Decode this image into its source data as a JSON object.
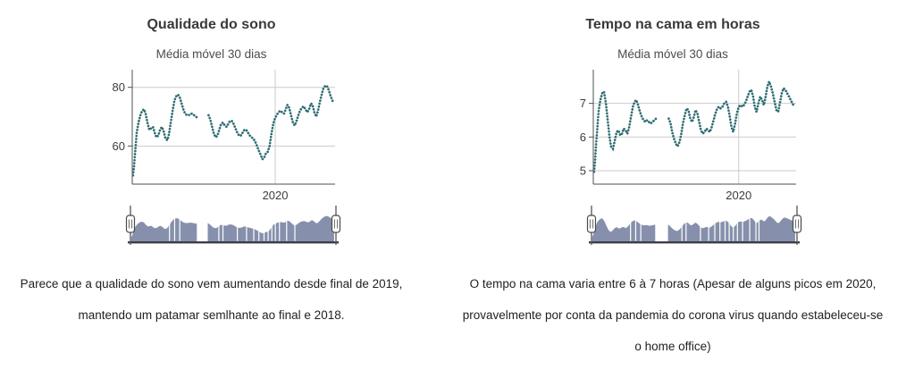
{
  "colors": {
    "series_teal": "#2e6d73",
    "brush_fill": "#8690ac",
    "brush_baseline": "#3d3d46",
    "gridline": "#cbcbcb",
    "axis": "#4f4f4f",
    "tick_text": "#3c3c3c",
    "handle_fill": "#ffffff",
    "handle_stroke": "#4a4a4a",
    "gap_line": "#ffffff"
  },
  "left_panel": {
    "title": "Qualidade do sono",
    "subtitle": "Média móvel 30 dias",
    "caption_lines": [
      "Parece que a qualidade do sono vem aumentando desde final de 2019,",
      "mantendo um patamar semlhante ao final e 2018."
    ]
  },
  "right_panel": {
    "title": "Tempo na cama em horas",
    "subtitle": "Média móvel 30 dias",
    "caption_lines": [
      "O tempo na cama varia entre 6 à 7 horas (Apesar de alguns picos em 2020,",
      "provavelmente por conta da pandemia do corona virus quando estabeleceu-se",
      "o home office)"
    ]
  },
  "chart_data": [
    {
      "type": "line",
      "style": "dotted",
      "title": "Qualidade do sono",
      "subtitle": "Média móvel 30 dias",
      "xlabel": "",
      "ylabel": "",
      "ylim": [
        47,
        86
      ],
      "yticks": [
        60,
        80
      ],
      "xticks": [
        {
          "label": "2020",
          "position": 0.705
        }
      ],
      "x_unit": "fraction of mid-2018 to mid-2020 range",
      "grid": true,
      "has_range_slider": true,
      "brush_vlim": [
        44,
        88
      ],
      "brush_gap_lines": [
        0.19,
        0.215,
        0.24,
        0.43,
        0.45,
        0.52,
        0.565,
        0.6,
        0.625,
        0.65,
        0.67,
        0.688,
        0.705,
        0.725,
        0.76,
        0.8
      ],
      "points": [
        [
          0.004,
          50.0
        ],
        [
          0.009,
          53.0
        ],
        [
          0.013,
          57.0
        ],
        [
          0.018,
          61.0
        ],
        [
          0.022,
          64.5
        ],
        [
          0.031,
          68.0
        ],
        [
          0.04,
          70.5
        ],
        [
          0.049,
          72.0
        ],
        [
          0.058,
          72.5
        ],
        [
          0.066,
          71.0
        ],
        [
          0.075,
          68.0
        ],
        [
          0.084,
          65.5
        ],
        [
          0.093,
          66.0
        ],
        [
          0.102,
          66.5
        ],
        [
          0.111,
          64.5
        ],
        [
          0.119,
          63.0
        ],
        [
          0.128,
          63.5
        ],
        [
          0.137,
          65.5
        ],
        [
          0.146,
          66.5
        ],
        [
          0.155,
          65.0
        ],
        [
          0.164,
          62.5
        ],
        [
          0.173,
          62.0
        ],
        [
          0.181,
          64.0
        ],
        [
          0.19,
          68.0
        ],
        [
          0.199,
          72.0
        ],
        [
          0.208,
          75.5
        ],
        [
          0.217,
          77.0
        ],
        [
          0.226,
          77.5
        ],
        [
          0.235,
          76.5
        ],
        [
          0.243,
          74.5
        ],
        [
          0.252,
          72.5
        ],
        [
          0.261,
          71.0
        ],
        [
          0.27,
          70.5
        ],
        [
          0.279,
          70.5
        ],
        [
          0.288,
          71.0
        ],
        [
          0.296,
          71.0
        ],
        [
          0.305,
          70.5
        ],
        [
          0.314,
          70.0
        ],
        [
          0.323,
          69.5
        ],
        null,
        [
          0.376,
          70.5
        ],
        [
          0.385,
          69.0
        ],
        [
          0.394,
          66.5
        ],
        [
          0.403,
          64.0
        ],
        [
          0.412,
          63.0
        ],
        [
          0.42,
          63.5
        ],
        [
          0.429,
          65.5
        ],
        [
          0.438,
          67.5
        ],
        [
          0.447,
          68.0
        ],
        [
          0.456,
          67.0
        ],
        [
          0.465,
          66.5
        ],
        [
          0.473,
          67.5
        ],
        [
          0.482,
          68.5
        ],
        [
          0.491,
          68.5
        ],
        [
          0.5,
          67.5
        ],
        [
          0.509,
          66.0
        ],
        [
          0.518,
          64.5
        ],
        [
          0.527,
          63.5
        ],
        [
          0.535,
          63.5
        ],
        [
          0.544,
          64.5
        ],
        [
          0.553,
          65.5
        ],
        [
          0.562,
          65.5
        ],
        [
          0.571,
          64.5
        ],
        [
          0.58,
          63.5
        ],
        [
          0.588,
          63.0
        ],
        [
          0.597,
          62.5
        ],
        [
          0.606,
          61.5
        ],
        [
          0.615,
          60.0
        ],
        [
          0.624,
          58.5
        ],
        [
          0.633,
          57.0
        ],
        [
          0.642,
          55.5
        ],
        [
          0.65,
          56.0
        ],
        [
          0.659,
          57.5
        ],
        [
          0.668,
          58.0
        ],
        [
          0.677,
          60.0
        ],
        [
          0.686,
          64.0
        ],
        [
          0.695,
          67.5
        ],
        [
          0.704,
          69.5
        ],
        [
          0.712,
          70.5
        ],
        [
          0.721,
          71.5
        ],
        [
          0.73,
          72.0
        ],
        [
          0.739,
          71.5
        ],
        [
          0.748,
          71.0
        ],
        [
          0.757,
          72.5
        ],
        [
          0.765,
          74.0
        ],
        [
          0.774,
          73.0
        ],
        [
          0.783,
          70.5
        ],
        [
          0.792,
          68.0
        ],
        [
          0.801,
          67.0
        ],
        [
          0.81,
          68.5
        ],
        [
          0.819,
          70.5
        ],
        [
          0.827,
          72.0
        ],
        [
          0.836,
          73.0
        ],
        [
          0.845,
          73.5
        ],
        [
          0.854,
          72.5
        ],
        [
          0.863,
          71.5
        ],
        [
          0.872,
          72.5
        ],
        [
          0.881,
          74.5
        ],
        [
          0.889,
          74.0
        ],
        [
          0.898,
          71.5
        ],
        [
          0.907,
          70.0
        ],
        [
          0.916,
          72.0
        ],
        [
          0.925,
          75.0
        ],
        [
          0.934,
          77.5
        ],
        [
          0.942,
          79.5
        ],
        [
          0.951,
          80.5
        ],
        [
          0.96,
          80.5
        ],
        [
          0.969,
          79.0
        ],
        [
          0.978,
          77.0
        ],
        [
          0.987,
          75.5
        ],
        [
          0.991,
          75.0
        ]
      ]
    },
    {
      "type": "line",
      "style": "dotted",
      "title": "Tempo na cama em horas",
      "subtitle": "Média móvel 30 dias",
      "xlabel": "",
      "ylabel": "",
      "ylim": [
        4.6,
        8.0
      ],
      "yticks": [
        5,
        6,
        7
      ],
      "xticks": [
        {
          "label": "2020",
          "position": 0.717
        }
      ],
      "x_unit": "fraction of mid-2018 to mid-2020 range",
      "grid": true,
      "has_range_slider": true,
      "brush_vlim": [
        4.4,
        8.3
      ],
      "brush_gap_lines": [
        0.19,
        0.215,
        0.24,
        0.44,
        0.46,
        0.53,
        0.57,
        0.6,
        0.625,
        0.65,
        0.67,
        0.69,
        0.71,
        0.735,
        0.77,
        0.8,
        0.815
      ],
      "points": [
        [
          0.004,
          4.97
        ],
        [
          0.009,
          5.3
        ],
        [
          0.013,
          5.75
        ],
        [
          0.018,
          6.1
        ],
        [
          0.022,
          6.45
        ],
        [
          0.027,
          6.8
        ],
        [
          0.035,
          7.1
        ],
        [
          0.044,
          7.3
        ],
        [
          0.053,
          7.35
        ],
        [
          0.062,
          7.0
        ],
        [
          0.071,
          6.5
        ],
        [
          0.08,
          6.0
        ],
        [
          0.088,
          5.7
        ],
        [
          0.097,
          5.65
        ],
        [
          0.106,
          5.9
        ],
        [
          0.115,
          6.15
        ],
        [
          0.124,
          6.2
        ],
        [
          0.133,
          6.05
        ],
        [
          0.142,
          6.1
        ],
        [
          0.15,
          6.25
        ],
        [
          0.159,
          6.2
        ],
        [
          0.168,
          6.1
        ],
        [
          0.177,
          6.3
        ],
        [
          0.186,
          6.6
        ],
        [
          0.195,
          6.9
        ],
        [
          0.204,
          7.05
        ],
        [
          0.212,
          7.1
        ],
        [
          0.221,
          6.95
        ],
        [
          0.23,
          6.75
        ],
        [
          0.239,
          6.6
        ],
        [
          0.248,
          6.5
        ],
        [
          0.257,
          6.45
        ],
        [
          0.265,
          6.5
        ],
        [
          0.274,
          6.45
        ],
        [
          0.283,
          6.4
        ],
        [
          0.292,
          6.45
        ],
        [
          0.301,
          6.5
        ],
        [
          0.31,
          6.55
        ],
        null,
        [
          0.372,
          6.55
        ],
        [
          0.381,
          6.4
        ],
        [
          0.389,
          6.15
        ],
        [
          0.398,
          5.95
        ],
        [
          0.407,
          5.8
        ],
        [
          0.416,
          5.72
        ],
        [
          0.425,
          5.85
        ],
        [
          0.434,
          6.1
        ],
        [
          0.442,
          6.4
        ],
        [
          0.451,
          6.65
        ],
        [
          0.46,
          6.85
        ],
        [
          0.469,
          6.8
        ],
        [
          0.478,
          6.55
        ],
        [
          0.487,
          6.45
        ],
        [
          0.496,
          6.6
        ],
        [
          0.504,
          6.8
        ],
        [
          0.513,
          6.7
        ],
        [
          0.522,
          6.45
        ],
        [
          0.531,
          6.2
        ],
        [
          0.54,
          6.1
        ],
        [
          0.549,
          6.15
        ],
        [
          0.558,
          6.25
        ],
        [
          0.566,
          6.2
        ],
        [
          0.575,
          6.15
        ],
        [
          0.584,
          6.3
        ],
        [
          0.593,
          6.5
        ],
        [
          0.602,
          6.7
        ],
        [
          0.611,
          6.85
        ],
        [
          0.619,
          6.9
        ],
        [
          0.628,
          6.85
        ],
        [
          0.637,
          6.9
        ],
        [
          0.646,
          7.0
        ],
        [
          0.655,
          7.05
        ],
        [
          0.664,
          6.9
        ],
        [
          0.673,
          6.6
        ],
        [
          0.681,
          6.3
        ],
        [
          0.69,
          6.15
        ],
        [
          0.699,
          6.4
        ],
        [
          0.708,
          6.7
        ],
        [
          0.717,
          6.9
        ],
        [
          0.726,
          6.95
        ],
        [
          0.735,
          6.9
        ],
        [
          0.743,
          6.95
        ],
        [
          0.752,
          7.05
        ],
        [
          0.761,
          7.2
        ],
        [
          0.77,
          7.35
        ],
        [
          0.779,
          7.4
        ],
        [
          0.788,
          7.2
        ],
        [
          0.796,
          6.9
        ],
        [
          0.805,
          6.75
        ],
        [
          0.814,
          7.0
        ],
        [
          0.823,
          7.2
        ],
        [
          0.832,
          7.1
        ],
        [
          0.841,
          6.95
        ],
        [
          0.85,
          7.2
        ],
        [
          0.858,
          7.5
        ],
        [
          0.867,
          7.65
        ],
        [
          0.876,
          7.5
        ],
        [
          0.885,
          7.3
        ],
        [
          0.894,
          7.05
        ],
        [
          0.903,
          6.8
        ],
        [
          0.912,
          6.75
        ],
        [
          0.92,
          7.0
        ],
        [
          0.929,
          7.3
        ],
        [
          0.938,
          7.45
        ],
        [
          0.947,
          7.4
        ],
        [
          0.956,
          7.3
        ],
        [
          0.965,
          7.2
        ],
        [
          0.973,
          7.1
        ],
        [
          0.982,
          7.0
        ],
        [
          0.991,
          6.9
        ]
      ]
    }
  ]
}
